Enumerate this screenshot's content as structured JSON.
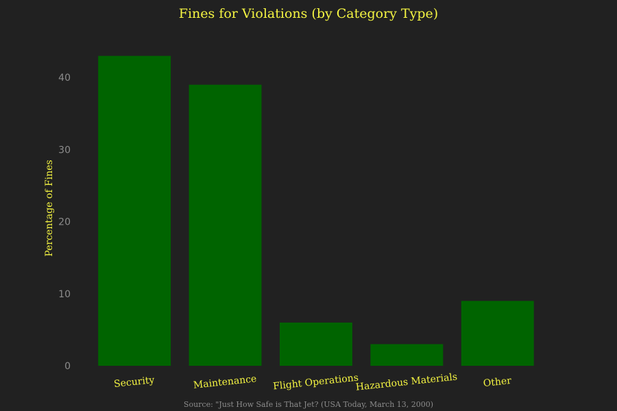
{
  "chart_data": {
    "type": "bar",
    "title": "Fines for Violations (by Category Type)",
    "xlabel": "",
    "ylabel": "Percentage of Fines",
    "categories": [
      "Security",
      "Maintenance",
      "Flight Operations",
      "Hazardous Materials",
      "Other"
    ],
    "values": [
      43,
      39,
      6,
      3,
      9
    ],
    "ylim": [
      0,
      46
    ],
    "yticks": [
      0,
      10,
      20,
      30,
      40
    ],
    "grid": false,
    "legend": "none",
    "source": "Source: \"Just How Safe is That Jet? (USA Today, March 13, 2000)",
    "colors": {
      "background": "#212121",
      "bar": "#006400",
      "title": "#f5f542",
      "tick": "#8c8c8c"
    }
  }
}
